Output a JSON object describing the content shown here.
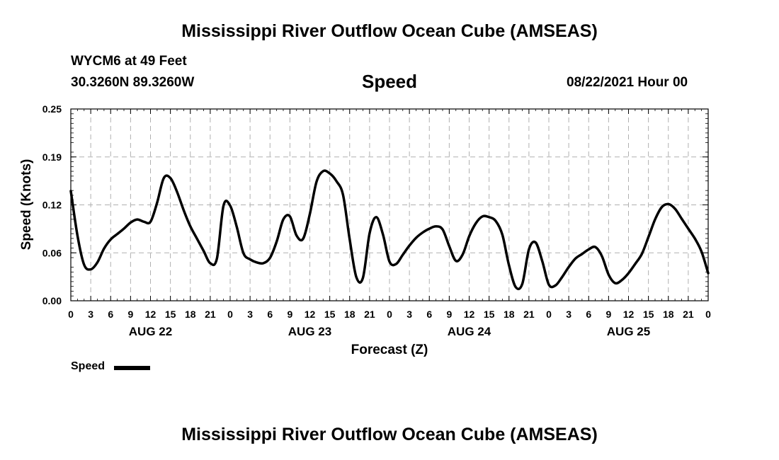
{
  "header": {
    "title": "Mississippi River Outflow Ocean Cube (AMSEAS)",
    "station": "WYCM6 at 49 Feet",
    "coords": "30.3260N  89.3260W",
    "variable": "Speed",
    "datetime": "08/22/2021 Hour 00"
  },
  "footer": {
    "title": "Mississippi River Outflow Ocean Cube (AMSEAS)"
  },
  "legend": {
    "label": "Speed"
  },
  "colors": {
    "line": "#000000",
    "grid": "#b0b0b0"
  },
  "chart_data": {
    "type": "line",
    "title": "Speed",
    "xlabel": "Forecast (Z)",
    "ylabel": "Speed (Knots)",
    "xlim": [
      0,
      96
    ],
    "ylim": [
      0,
      0.25
    ],
    "yticks": [
      "0.00",
      "0.06",
      "0.12",
      "0.19",
      "0.25"
    ],
    "ytick_values": [
      0,
      0.0625,
      0.125,
      0.1875,
      0.25
    ],
    "xticks": [
      0,
      3,
      6,
      9,
      12,
      15,
      18,
      21,
      24,
      27,
      30,
      33,
      36,
      39,
      42,
      45,
      48,
      51,
      54,
      57,
      60,
      63,
      66,
      69,
      72,
      75,
      78,
      81,
      84,
      87,
      90,
      93,
      96
    ],
    "xtick_labels": [
      "0",
      "3",
      "6",
      "9",
      "12",
      "15",
      "18",
      "21",
      "0",
      "3",
      "6",
      "9",
      "12",
      "15",
      "18",
      "21",
      "0",
      "3",
      "6",
      "9",
      "12",
      "15",
      "18",
      "21",
      "0",
      "3",
      "6",
      "9",
      "12",
      "15",
      "18",
      "21",
      "0"
    ],
    "day_labels": [
      {
        "label": "AUG 22",
        "x": 12
      },
      {
        "label": "AUG 23",
        "x": 36
      },
      {
        "label": "AUG 24",
        "x": 60
      },
      {
        "label": "AUG 25",
        "x": 84
      }
    ],
    "grid": true,
    "legend": "bottom-left",
    "series": [
      {
        "name": "Speed",
        "x": [
          0,
          1,
          2,
          3,
          4,
          5,
          6,
          7,
          8,
          9,
          10,
          11,
          12,
          13,
          14,
          15,
          16,
          17,
          18,
          19,
          20,
          21,
          22,
          23,
          24,
          25,
          26,
          27,
          28,
          29,
          30,
          31,
          32,
          33,
          34,
          35,
          36,
          37,
          38,
          39,
          40,
          41,
          42,
          43,
          44,
          45,
          46,
          47,
          48,
          49,
          50,
          51,
          52,
          53,
          54,
          55,
          56,
          57,
          58,
          59,
          60,
          61,
          62,
          63,
          64,
          65,
          66,
          67,
          68,
          69,
          70,
          71,
          72,
          73,
          74,
          75,
          76,
          77,
          78,
          79,
          80,
          81,
          82,
          83,
          84,
          85,
          86,
          87,
          88,
          89,
          90,
          91,
          92,
          93,
          94,
          95,
          96
        ],
        "values": [
          0.143,
          0.085,
          0.047,
          0.041,
          0.05,
          0.068,
          0.08,
          0.087,
          0.094,
          0.102,
          0.106,
          0.103,
          0.103,
          0.128,
          0.16,
          0.16,
          0.142,
          0.118,
          0.097,
          0.081,
          0.065,
          0.049,
          0.055,
          0.124,
          0.124,
          0.096,
          0.062,
          0.054,
          0.05,
          0.049,
          0.056,
          0.077,
          0.106,
          0.11,
          0.085,
          0.081,
          0.113,
          0.155,
          0.169,
          0.166,
          0.156,
          0.138,
          0.08,
          0.031,
          0.03,
          0.088,
          0.109,
          0.087,
          0.051,
          0.048,
          0.06,
          0.072,
          0.082,
          0.089,
          0.094,
          0.097,
          0.093,
          0.071,
          0.052,
          0.06,
          0.084,
          0.101,
          0.11,
          0.109,
          0.104,
          0.086,
          0.046,
          0.018,
          0.022,
          0.067,
          0.076,
          0.052,
          0.021,
          0.02,
          0.031,
          0.044,
          0.055,
          0.061,
          0.067,
          0.07,
          0.058,
          0.034,
          0.023,
          0.027,
          0.036,
          0.048,
          0.061,
          0.083,
          0.106,
          0.122,
          0.126,
          0.12,
          0.107,
          0.094,
          0.081,
          0.064,
          0.036
        ]
      }
    ]
  }
}
